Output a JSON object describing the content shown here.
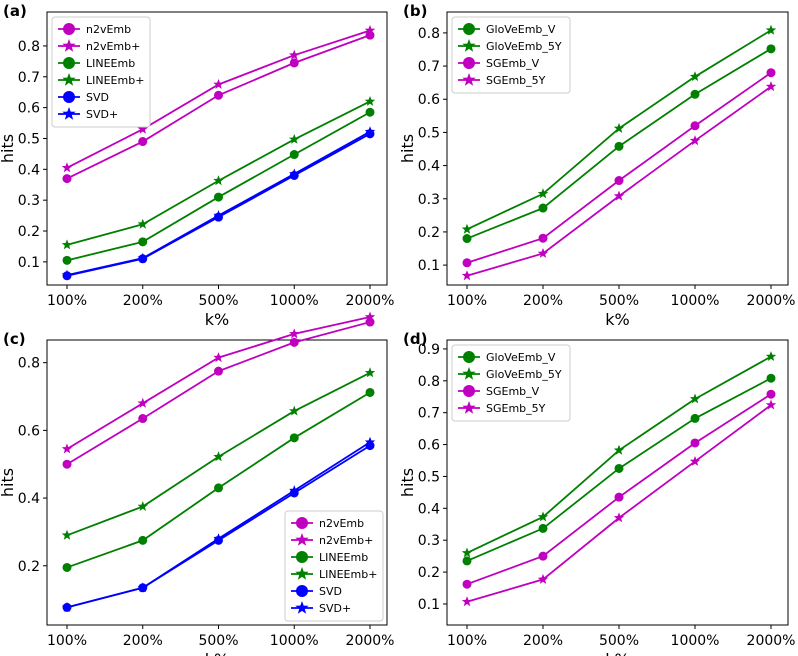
{
  "colors": {
    "magenta": "#bf00bf",
    "green": "#008000",
    "blue": "#0000ff"
  },
  "chart_data": [
    {
      "type": "line",
      "panel": "(a)",
      "xlabel": "k%",
      "ylabel": "hits",
      "categories": [
        "100%",
        "200%",
        "500%",
        "1000%",
        "2000%"
      ],
      "yticks": [
        0.1,
        0.2,
        0.3,
        0.4,
        0.5,
        0.6,
        0.7,
        0.8
      ],
      "ylim": [
        0.025,
        0.91
      ],
      "legend": "top-left",
      "series": [
        {
          "name": "n2vEmb",
          "color": "magenta",
          "marker": "circle",
          "values": [
            0.37,
            0.49,
            0.64,
            0.745,
            0.835
          ]
        },
        {
          "name": "n2vEmb+",
          "color": "magenta",
          "marker": "star",
          "values": [
            0.405,
            0.53,
            0.675,
            0.77,
            0.85
          ]
        },
        {
          "name": "LINEEmb",
          "color": "green",
          "marker": "circle",
          "values": [
            0.105,
            0.165,
            0.31,
            0.448,
            0.585
          ]
        },
        {
          "name": "LINEEmb+",
          "color": "green",
          "marker": "star",
          "values": [
            0.155,
            0.222,
            0.363,
            0.497,
            0.62
          ]
        },
        {
          "name": "SVD",
          "color": "blue",
          "marker": "circle",
          "values": [
            0.055,
            0.11,
            0.245,
            0.38,
            0.515
          ]
        },
        {
          "name": "SVD+",
          "color": "blue",
          "marker": "star",
          "values": [
            0.057,
            0.112,
            0.25,
            0.385,
            0.522
          ]
        }
      ]
    },
    {
      "type": "line",
      "panel": "(b)",
      "xlabel": "k%",
      "ylabel": "hits",
      "categories": [
        "100%",
        "200%",
        "500%",
        "1000%",
        "2000%"
      ],
      "yticks": [
        0.1,
        0.2,
        0.3,
        0.4,
        0.5,
        0.6,
        0.7,
        0.8
      ],
      "ylim": [
        0.04,
        0.863
      ],
      "legend": "top-left",
      "series": [
        {
          "name": "GloVeEmb_V",
          "color": "green",
          "marker": "circle",
          "values": [
            0.18,
            0.272,
            0.458,
            0.615,
            0.752
          ]
        },
        {
          "name": "GloVeEmb_5Y",
          "color": "green",
          "marker": "star",
          "values": [
            0.208,
            0.315,
            0.512,
            0.668,
            0.808
          ]
        },
        {
          "name": "SGEmb_V",
          "color": "magenta",
          "marker": "circle",
          "values": [
            0.107,
            0.181,
            0.355,
            0.52,
            0.68
          ]
        },
        {
          "name": "SGEmb_5Y",
          "color": "magenta",
          "marker": "star",
          "values": [
            0.068,
            0.135,
            0.308,
            0.475,
            0.638
          ]
        }
      ]
    },
    {
      "type": "line",
      "panel": "(c)",
      "xlabel": "k%",
      "ylabel": "hits",
      "categories": [
        "100%",
        "200%",
        "500%",
        "1000%",
        "2000%"
      ],
      "yticks": [
        0.2,
        0.4,
        0.6,
        0.8
      ],
      "ylim": [
        0.025,
        0.867
      ],
      "legend": "bottom-right",
      "series": [
        {
          "name": "n2vEmb",
          "color": "magenta",
          "marker": "circle",
          "values": [
            0.5,
            0.635,
            0.775,
            0.86,
            0.92
          ]
        },
        {
          "name": "n2vEmb+",
          "color": "magenta",
          "marker": "star",
          "values": [
            0.545,
            0.68,
            0.815,
            0.885,
            0.935
          ]
        },
        {
          "name": "LINEEmb",
          "color": "green",
          "marker": "circle",
          "values": [
            0.195,
            0.275,
            0.43,
            0.578,
            0.712
          ]
        },
        {
          "name": "LINEEmb+",
          "color": "green",
          "marker": "star",
          "values": [
            0.29,
            0.375,
            0.522,
            0.657,
            0.77
          ]
        },
        {
          "name": "SVD",
          "color": "blue",
          "marker": "circle",
          "values": [
            0.077,
            0.135,
            0.275,
            0.415,
            0.555
          ]
        },
        {
          "name": "SVD+",
          "color": "blue",
          "marker": "star",
          "values": [
            0.077,
            0.135,
            0.28,
            0.422,
            0.565
          ]
        }
      ]
    },
    {
      "type": "line",
      "panel": "(d)",
      "xlabel": "k%",
      "ylabel": "hits",
      "categories": [
        "100%",
        "200%",
        "500%",
        "1000%",
        "2000%"
      ],
      "yticks": [
        0.1,
        0.2,
        0.3,
        0.4,
        0.5,
        0.6,
        0.7,
        0.8,
        0.9
      ],
      "ylim": [
        0.034,
        0.928
      ],
      "legend": "top-left",
      "series": [
        {
          "name": "GloVeEmb_V",
          "color": "green",
          "marker": "circle",
          "values": [
            0.235,
            0.337,
            0.525,
            0.682,
            0.808
          ]
        },
        {
          "name": "GloVeEmb_5Y",
          "color": "green",
          "marker": "star",
          "values": [
            0.26,
            0.373,
            0.582,
            0.743,
            0.876
          ]
        },
        {
          "name": "SGEmb_V",
          "color": "magenta",
          "marker": "circle",
          "values": [
            0.162,
            0.25,
            0.435,
            0.605,
            0.758
          ]
        },
        {
          "name": "SGEmb_5Y",
          "color": "magenta",
          "marker": "star",
          "values": [
            0.107,
            0.177,
            0.37,
            0.547,
            0.724
          ]
        }
      ]
    }
  ]
}
